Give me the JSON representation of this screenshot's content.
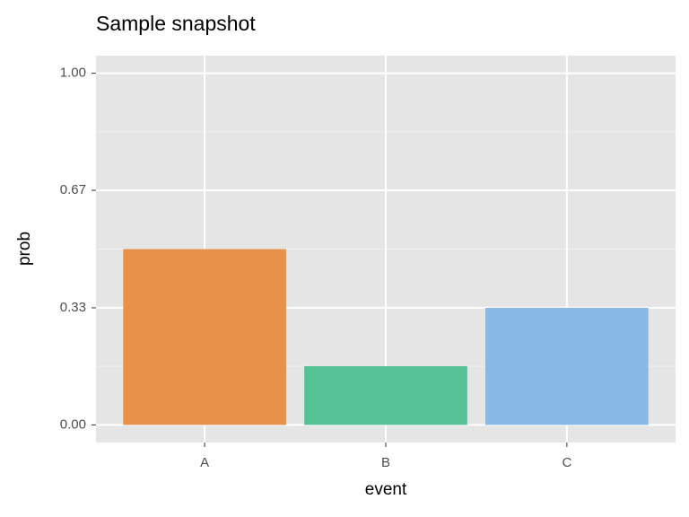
{
  "chart_data": {
    "type": "bar",
    "title": "Sample snapshot",
    "x_label": "event",
    "y_label": "prob",
    "categories": [
      "A",
      "B",
      "C"
    ],
    "values": [
      0.5,
      0.167,
      0.333
    ],
    "colors": [
      "#e8914a",
      "#55c396",
      "#89b8e6"
    ],
    "ylim": [
      -0.05,
      1.05
    ],
    "yticks": [
      {
        "value": 0,
        "label": "0.00"
      },
      {
        "value": 0.333,
        "label": "0.33"
      },
      {
        "value": 0.667,
        "label": "0.67"
      },
      {
        "value": 1,
        "label": "1.00"
      }
    ],
    "grid": true
  }
}
